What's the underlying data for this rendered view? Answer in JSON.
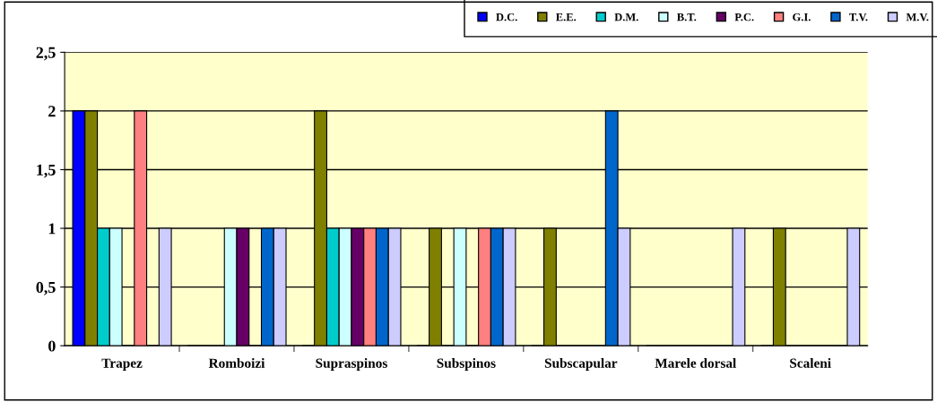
{
  "chart_data": {
    "type": "bar",
    "categories": [
      "Trapez",
      "Romboizi",
      "Supraspinos",
      "Subspinos",
      "Subscapular",
      "Marele dorsal",
      "Scaleni"
    ],
    "series": [
      {
        "name": "D.C.",
        "color": "#0000ff",
        "values": [
          2,
          0,
          0,
          0,
          0,
          0,
          0
        ]
      },
      {
        "name": "E.E.",
        "color": "#808000",
        "values": [
          2,
          0,
          2,
          1,
          1,
          0,
          1
        ]
      },
      {
        "name": "D.M.",
        "color": "#00cccc",
        "values": [
          1,
          0,
          1,
          0,
          0,
          0,
          0
        ]
      },
      {
        "name": "B.T.",
        "color": "#ccffff",
        "values": [
          1,
          1,
          1,
          1,
          0,
          0,
          0
        ]
      },
      {
        "name": "P.C.",
        "color": "#660066",
        "values": [
          0,
          1,
          1,
          0,
          0,
          0,
          0
        ]
      },
      {
        "name": "G.I.",
        "color": "#ff8080",
        "values": [
          2,
          0,
          1,
          1,
          0,
          0,
          0
        ]
      },
      {
        "name": "T.V.",
        "color": "#0066cc",
        "values": [
          0,
          1,
          1,
          1,
          2,
          0,
          0
        ]
      },
      {
        "name": "M.V.",
        "color": "#ccccff",
        "values": [
          1,
          1,
          1,
          1,
          1,
          1,
          1
        ]
      }
    ],
    "ylim": [
      0,
      2.5
    ],
    "yticks": [
      0,
      {
        "value": 0.5,
        "label": "0,5"
      },
      1,
      {
        "value": 1.5,
        "label": "1,5"
      },
      2,
      {
        "value": 2.5,
        "label": "2,5"
      }
    ],
    "grid": "y",
    "legend": "top right"
  }
}
